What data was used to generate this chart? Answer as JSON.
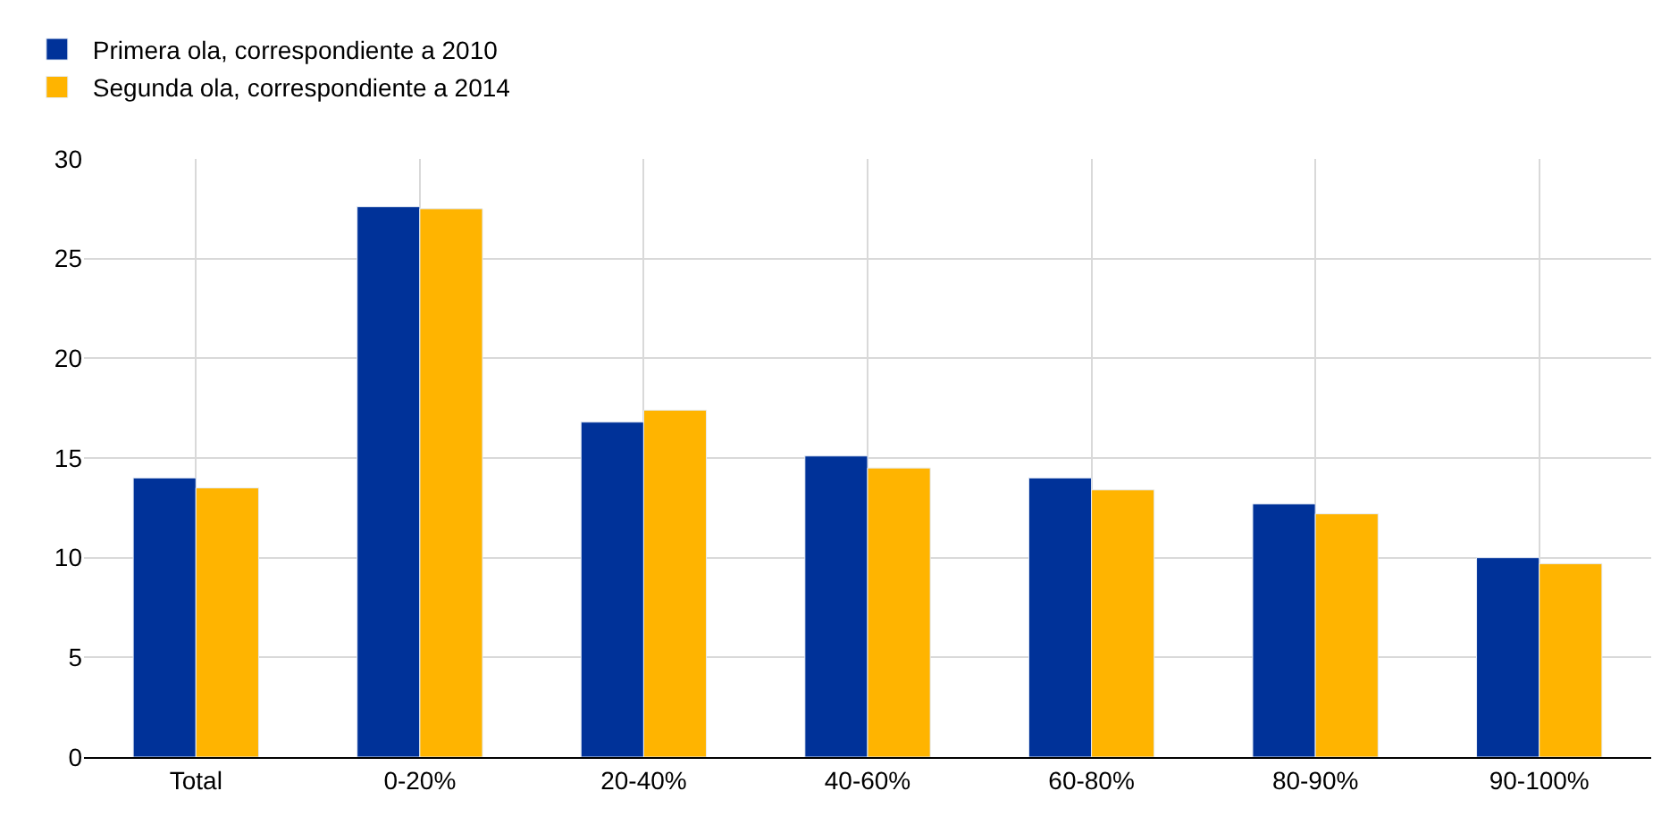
{
  "chart_data": {
    "type": "bar",
    "categories": [
      "Total",
      "0-20%",
      "20-40%",
      "40-60%",
      "60-80%",
      "80-90%",
      "90-100%"
    ],
    "series": [
      {
        "name": "Primera ola, correspondiente a 2010",
        "color": "#003299",
        "values": [
          14.0,
          27.6,
          16.8,
          15.1,
          14.0,
          12.7,
          10.0
        ]
      },
      {
        "name": "Segunda ola, correspondiente a 2014",
        "color": "#ffb400",
        "values": [
          13.5,
          27.5,
          17.4,
          14.5,
          13.4,
          12.2,
          9.7
        ]
      }
    ],
    "ylim": [
      0,
      30
    ],
    "yticks": [
      0,
      5,
      10,
      15,
      20,
      25,
      30
    ],
    "grid": true,
    "legend": "top left"
  }
}
